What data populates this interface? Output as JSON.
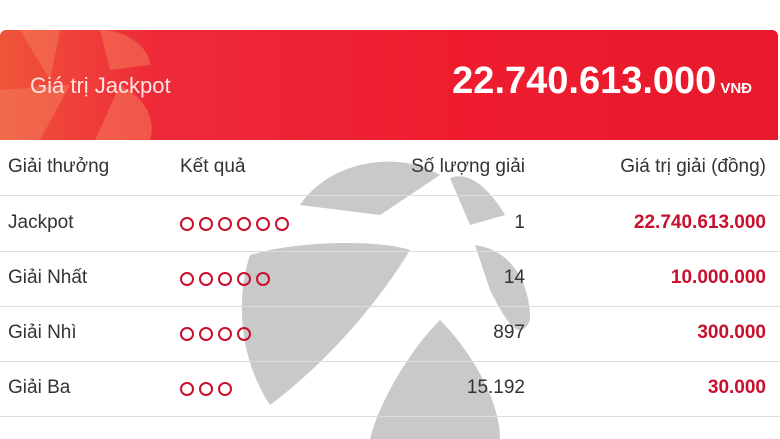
{
  "banner": {
    "label": "Giá trị Jackpot",
    "value": "22.740.613.000",
    "unit": "VNĐ",
    "color": "#ee1c2e"
  },
  "table": {
    "headers": [
      "Giải thưởng",
      "Kết quả",
      "Số lượng giải",
      "Giá trị giải (đồng)"
    ],
    "rows": [
      {
        "prize": "Jackpot",
        "matches": 6,
        "count": "1",
        "value": "22.740.613.000"
      },
      {
        "prize": "Giải Nhất",
        "matches": 5,
        "count": "14",
        "value": "10.000.000"
      },
      {
        "prize": "Giải Nhì",
        "matches": 4,
        "count": "897",
        "value": "300.000"
      },
      {
        "prize": "Giải Ba",
        "matches": 3,
        "count": "15.192",
        "value": "30.000"
      }
    ]
  },
  "accent_color": "#c8102e"
}
